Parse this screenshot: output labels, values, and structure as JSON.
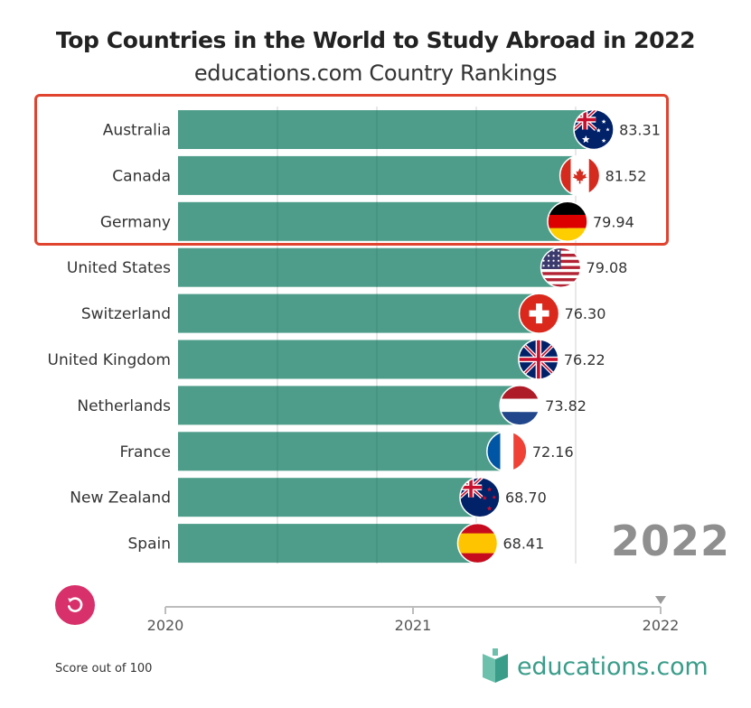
{
  "chart_data": {
    "type": "bar",
    "orientation": "horizontal",
    "title": "Top Countries in the World to Study Abroad in 2022",
    "subtitle": "educations.com Country Rankings",
    "categories": [
      "Australia",
      "Canada",
      "Germany",
      "United States",
      "Switzerland",
      "United Kingdom",
      "Netherlands",
      "France",
      "New Zealand",
      "Spain"
    ],
    "values": [
      83.31,
      81.52,
      79.94,
      79.08,
      76.3,
      76.22,
      73.82,
      72.16,
      68.7,
      68.41
    ],
    "value_labels": [
      "83.31",
      "81.52",
      "79.94",
      "79.08",
      "76.30",
      "76.22",
      "73.82",
      "72.16",
      "68.70",
      "68.41"
    ],
    "flags": [
      "australia-flag",
      "canada-flag",
      "germany-flag",
      "usa-flag",
      "switzerland-flag",
      "uk-flag",
      "netherlands-flag",
      "france-flag",
      "new-zealand-flag",
      "spain-flag"
    ],
    "timeline": {
      "ticks": [
        "2020",
        "2021",
        "2022"
      ],
      "current": "2022"
    },
    "highlighted_categories": [
      "Australia",
      "Canada",
      "Germany"
    ],
    "grid": "vertical",
    "bar_color": "#4e9d8a",
    "highlight_color": "#e0442f",
    "footnote": "Score out of 100"
  },
  "brand": {
    "logo_text": "educations.com",
    "accent": "#3a9d8a"
  },
  "controls": {
    "replay_icon": "replay-icon",
    "replay_color": "#d8306a"
  }
}
